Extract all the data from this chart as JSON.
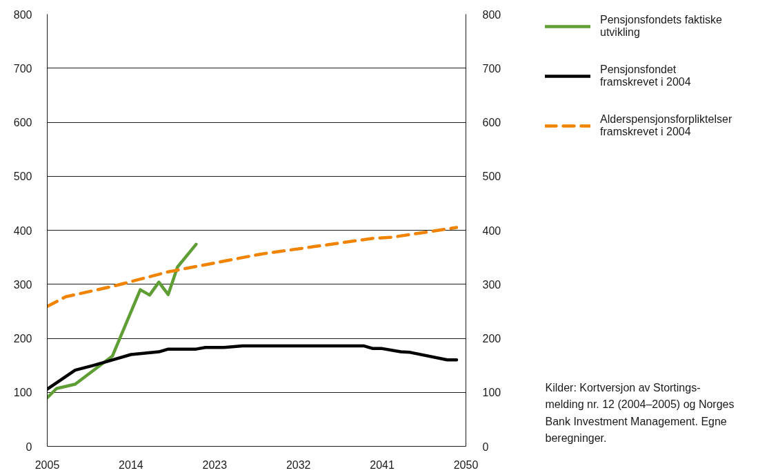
{
  "chart_data": {
    "type": "line",
    "series": [
      {
        "name": "Pensjonsfondets faktiske utvikling",
        "color": "#5f9e35",
        "line_style": "solid",
        "x": [
          2005,
          2006,
          2008,
          2012,
          2015,
          2016,
          2017,
          2018,
          2019,
          2021
        ],
        "values": [
          90,
          107,
          115,
          167,
          290,
          280,
          304,
          281,
          332,
          374
        ]
      },
      {
        "name": "Pensjonsfondet framskrevet i 2004",
        "color": "#000000",
        "line_style": "solid",
        "x": [
          2005,
          2008,
          2010,
          2012,
          2014,
          2017,
          2018,
          2021,
          2022,
          2024,
          2026,
          2039,
          2040,
          2041,
          2043,
          2044,
          2048,
          2049
        ],
        "values": [
          106,
          141,
          150,
          160,
          170,
          175,
          180,
          180,
          183,
          183,
          186,
          186,
          181,
          181,
          175,
          174,
          160,
          160
        ]
      },
      {
        "name": "Alderspensjonsforpliktelser framskrevet i 2004",
        "color": "#f08300",
        "line_style": "dashed",
        "x": [
          2005,
          2007,
          2012,
          2018,
          2028,
          2040,
          2042,
          2044,
          2049
        ],
        "values": [
          259,
          277,
          296,
          323,
          356,
          385,
          387,
          392,
          405
        ]
      }
    ],
    "xlim": [
      2005,
      2050
    ],
    "xticks": [
      2005,
      2014,
      2023,
      2032,
      2041,
      2050
    ],
    "ylim": [
      0,
      800
    ],
    "yticks": [
      0,
      100,
      200,
      300,
      400,
      500,
      600,
      700,
      800
    ],
    "y2lim": [
      0,
      800
    ],
    "y2ticks": [
      0,
      100,
      200,
      300,
      400,
      500,
      600,
      700,
      800
    ],
    "grid": "y",
    "legend": "top right",
    "annotations": [
      "Kilder: Kortversjon av Stortings-melding nr. 12 (2004–2005) og Norges Bank Investment Management. Egne beregninger."
    ]
  }
}
